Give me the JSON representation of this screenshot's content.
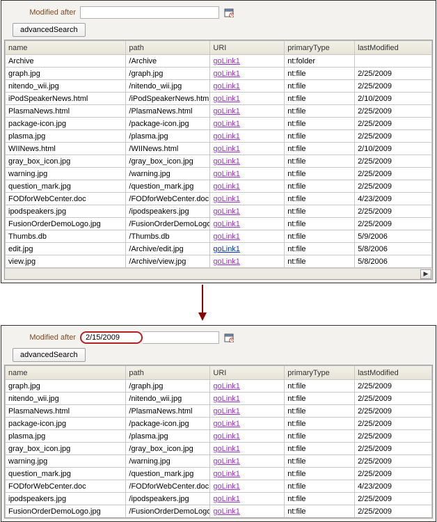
{
  "panel1": {
    "filterLabel": "Modified after",
    "filterValue": "",
    "searchBtn": "advancedSearch",
    "cols": {
      "name": "name",
      "path": "path",
      "uri": "URI",
      "primaryType": "primaryType",
      "lastModified": "lastModified"
    },
    "rows": [
      {
        "name": "Archive",
        "path": "/Archive",
        "uri": "goLink1",
        "uriBlue": false,
        "pt": "nt:folder",
        "lm": ""
      },
      {
        "name": "graph.jpg",
        "path": "/graph.jpg",
        "uri": "goLink1",
        "uriBlue": false,
        "pt": "nt:file",
        "lm": "2/25/2009"
      },
      {
        "name": "nitendo_wii.jpg",
        "path": "/nitendo_wii.jpg",
        "uri": "goLink1",
        "uriBlue": false,
        "pt": "nt:file",
        "lm": "2/25/2009"
      },
      {
        "name": "iPodSpeakerNews.html",
        "path": "/iPodSpeakerNews.html",
        "uri": "goLink1",
        "uriBlue": false,
        "pt": "nt:file",
        "lm": "2/10/2009"
      },
      {
        "name": "PlasmaNews.html",
        "path": "/PlasmaNews.html",
        "uri": "goLink1",
        "uriBlue": false,
        "pt": "nt:file",
        "lm": "2/25/2009"
      },
      {
        "name": "package-icon.jpg",
        "path": "/package-icon.jpg",
        "uri": "goLink1",
        "uriBlue": false,
        "pt": "nt:file",
        "lm": "2/25/2009"
      },
      {
        "name": "plasma.jpg",
        "path": "/plasma.jpg",
        "uri": "goLink1",
        "uriBlue": false,
        "pt": "nt:file",
        "lm": "2/25/2009"
      },
      {
        "name": "WIINews.html",
        "path": "/WIINews.html",
        "uri": "goLink1",
        "uriBlue": false,
        "pt": "nt:file",
        "lm": "2/10/2009"
      },
      {
        "name": "gray_box_icon.jpg",
        "path": "/gray_box_icon.jpg",
        "uri": "goLink1",
        "uriBlue": false,
        "pt": "nt:file",
        "lm": "2/25/2009"
      },
      {
        "name": "warning.jpg",
        "path": "/warning.jpg",
        "uri": "goLink1",
        "uriBlue": false,
        "pt": "nt:file",
        "lm": "2/25/2009"
      },
      {
        "name": "question_mark.jpg",
        "path": "/question_mark.jpg",
        "uri": "goLink1",
        "uriBlue": false,
        "pt": "nt:file",
        "lm": "2/25/2009"
      },
      {
        "name": "FODforWebCenter.doc",
        "path": "/FODforWebCenter.doc",
        "uri": "goLink1",
        "uriBlue": false,
        "pt": "nt:file",
        "lm": "4/23/2009"
      },
      {
        "name": "ipodspeakers.jpg",
        "path": "/ipodspeakers.jpg",
        "uri": "goLink1",
        "uriBlue": false,
        "pt": "nt:file",
        "lm": "2/25/2009"
      },
      {
        "name": "FusionOrderDemoLogo.jpg",
        "path": "/FusionOrderDemoLogo.jpg",
        "uri": "goLink1",
        "uriBlue": false,
        "pt": "nt:file",
        "lm": "2/25/2009"
      },
      {
        "name": "Thumbs.db",
        "path": "/Thumbs.db",
        "uri": "goLink1",
        "uriBlue": false,
        "pt": "nt:file",
        "lm": "5/9/2006"
      },
      {
        "name": "edit.jpg",
        "path": "/Archive/edit.jpg",
        "uri": "goLink1",
        "uriBlue": true,
        "pt": "nt:file",
        "lm": "5/8/2006"
      },
      {
        "name": "view.jpg",
        "path": "/Archive/view.jpg",
        "uri": "goLink1",
        "uriBlue": false,
        "pt": "nt:file",
        "lm": "5/8/2006"
      }
    ]
  },
  "panel2": {
    "filterLabel": "Modified after",
    "filterValue": "2/15/2009",
    "searchBtn": "advancedSearch",
    "cols": {
      "name": "name",
      "path": "path",
      "uri": "URI",
      "primaryType": "primaryType",
      "lastModified": "lastModified"
    },
    "rows": [
      {
        "name": "graph.jpg",
        "path": "/graph.jpg",
        "uri": "goLink1",
        "pt": "nt:file",
        "lm": "2/25/2009"
      },
      {
        "name": "nitendo_wii.jpg",
        "path": "/nitendo_wii.jpg",
        "uri": "goLink1",
        "pt": "nt:file",
        "lm": "2/25/2009"
      },
      {
        "name": "PlasmaNews.html",
        "path": "/PlasmaNews.html",
        "uri": "goLink1",
        "pt": "nt:file",
        "lm": "2/25/2009"
      },
      {
        "name": "package-icon.jpg",
        "path": "/package-icon.jpg",
        "uri": "goLink1",
        "pt": "nt:file",
        "lm": "2/25/2009"
      },
      {
        "name": "plasma.jpg",
        "path": "/plasma.jpg",
        "uri": "goLink1",
        "pt": "nt:file",
        "lm": "2/25/2009"
      },
      {
        "name": "gray_box_icon.jpg",
        "path": "/gray_box_icon.jpg",
        "uri": "goLink1",
        "pt": "nt:file",
        "lm": "2/25/2009"
      },
      {
        "name": "warning.jpg",
        "path": "/warning.jpg",
        "uri": "goLink1",
        "pt": "nt:file",
        "lm": "2/25/2009"
      },
      {
        "name": "question_mark.jpg",
        "path": "/question_mark.jpg",
        "uri": "goLink1",
        "pt": "nt:file",
        "lm": "2/25/2009"
      },
      {
        "name": "FODforWebCenter.doc",
        "path": "/FODforWebCenter.doc",
        "uri": "goLink1",
        "pt": "nt:file",
        "lm": "4/23/2009"
      },
      {
        "name": "ipodspeakers.jpg",
        "path": "/ipodspeakers.jpg",
        "uri": "goLink1",
        "pt": "nt:file",
        "lm": "2/25/2009"
      },
      {
        "name": "FusionOrderDemoLogo.jpg",
        "path": "/FusionOrderDemoLogo.jpg",
        "uri": "goLink1",
        "pt": "nt:file",
        "lm": "2/25/2009"
      }
    ]
  }
}
